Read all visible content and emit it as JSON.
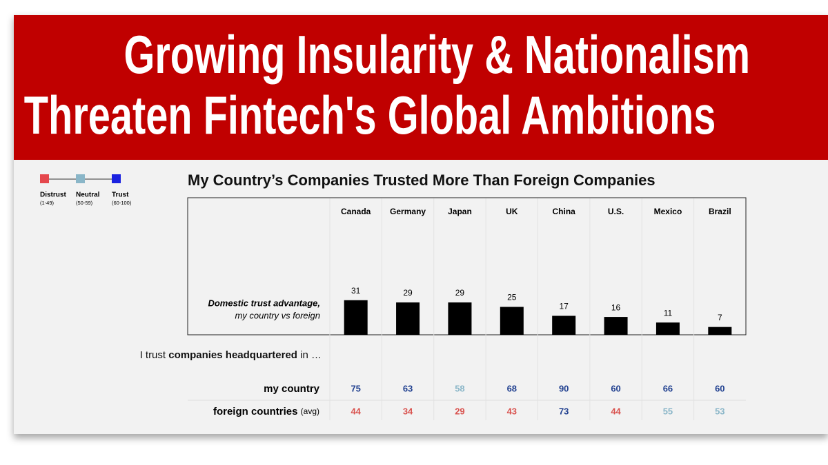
{
  "header": {
    "lines": [
      "Growing Insularity & Nationalism",
      "Threaten Fintech's Global Ambitions"
    ]
  },
  "legend": [
    {
      "name": "Distrust",
      "range": "(1-49)",
      "color": "#e5484d"
    },
    {
      "name": "Neutral",
      "range": "(50-59)",
      "color": "#8ab6c8"
    },
    {
      "name": "Trust",
      "range": "(60-100)",
      "color": "#1b22e0"
    }
  ],
  "chart_data": {
    "type": "bar",
    "title": "My Country’s Companies Trusted More Than Foreign Companies",
    "y_label_lines": [
      "Domestic trust advantage,",
      "my country vs foreign"
    ],
    "categories": [
      "Canada",
      "Germany",
      "Japan",
      "UK",
      "China",
      "U.S.",
      "Mexico",
      "Brazil"
    ],
    "values": [
      31,
      29,
      29,
      25,
      17,
      16,
      11,
      7
    ],
    "color": "#000000"
  },
  "table": {
    "intro": [
      "I trust ",
      "companies headquartered",
      " in …"
    ],
    "rows": [
      {
        "label": "my country",
        "values": [
          75,
          63,
          58,
          68,
          90,
          60,
          66,
          60
        ],
        "colors": [
          "#1f3f8f",
          "#1f3f8f",
          "#8ab6c8",
          "#1f3f8f",
          "#1f3f8f",
          "#1f3f8f",
          "#1f3f8f",
          "#1f3f8f"
        ]
      },
      {
        "label": "foreign countries",
        "note": "(avg)",
        "values": [
          44,
          34,
          29,
          43,
          73,
          44,
          55,
          53
        ],
        "colors": [
          "#d9534f",
          "#d9534f",
          "#d9534f",
          "#d9534f",
          "#1f3f8f",
          "#d9534f",
          "#8ab6c8",
          "#8ab6c8"
        ]
      }
    ]
  }
}
